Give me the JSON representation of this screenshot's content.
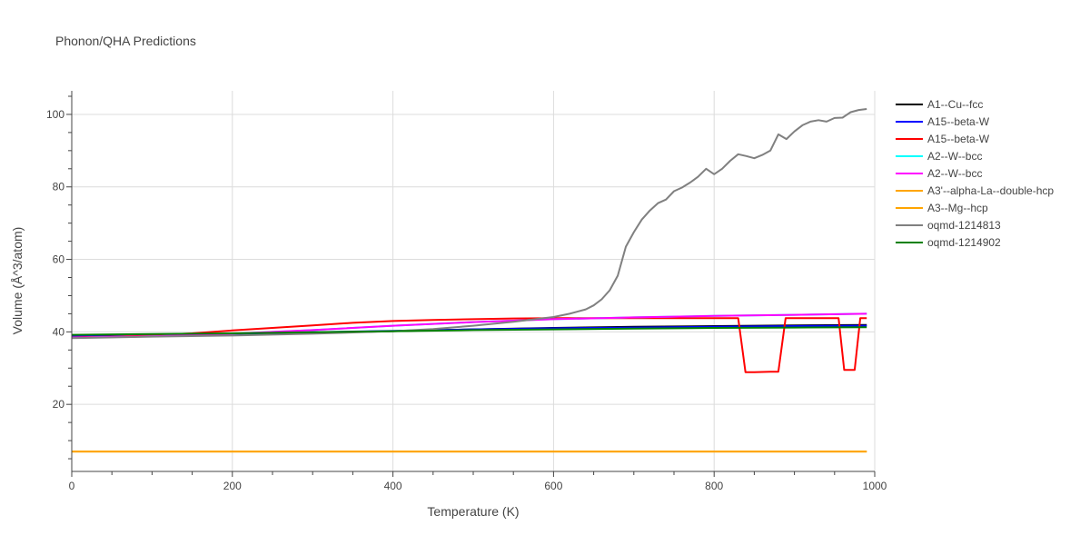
{
  "chart_data": {
    "type": "line",
    "title": "Phonon/QHA Predictions",
    "xlabel": "Temperature (K)",
    "ylabel": "Volume (Å^3/atom)",
    "xlim": [
      0,
      1000
    ],
    "ylim": [
      1.5,
      106.5
    ],
    "xticks": [
      0,
      200,
      400,
      600,
      800,
      1000
    ],
    "yticks": [
      20,
      40,
      60,
      80,
      100
    ],
    "grid": true,
    "legend_position": "right",
    "series": [
      {
        "name": "A1--Cu--fcc",
        "color": "#000000",
        "x": [
          0,
          100,
          200,
          300,
          400,
          500,
          600,
          700,
          800,
          900,
          990
        ],
        "y": [
          38.6,
          38.9,
          39.2,
          39.7,
          40.2,
          40.7,
          41.1,
          41.4,
          41.6,
          41.8,
          41.9
        ]
      },
      {
        "name": "A15--beta-W",
        "color": "#0000ff",
        "x": [
          0,
          100,
          200,
          300,
          400,
          500,
          600,
          700,
          800,
          900,
          990
        ],
        "y": [
          38.8,
          39.0,
          39.4,
          39.9,
          40.3,
          40.7,
          41.0,
          41.2,
          41.4,
          41.6,
          41.7
        ]
      },
      {
        "name": "A15--beta-W",
        "color": "#ff0000",
        "x": [
          0,
          50,
          100,
          150,
          200,
          250,
          300,
          350,
          400,
          450,
          500,
          550,
          600,
          650,
          700,
          750,
          800,
          830,
          839,
          850,
          870,
          880,
          889,
          900,
          950,
          955,
          962,
          970,
          975,
          982,
          990
        ],
        "y": [
          38.5,
          38.7,
          39.1,
          39.6,
          40.4,
          41.1,
          41.8,
          42.5,
          43.0,
          43.3,
          43.5,
          43.7,
          43.8,
          43.8,
          43.8,
          43.8,
          43.8,
          43.8,
          28.9,
          28.9,
          29.0,
          29.0,
          43.8,
          43.8,
          43.8,
          43.8,
          29.5,
          29.5,
          29.5,
          43.8,
          43.8
        ]
      },
      {
        "name": "A2--W--bcc",
        "color": "#00ffff",
        "x": [
          0,
          100,
          200,
          300,
          400,
          500,
          600,
          700,
          800,
          900,
          990
        ],
        "y": [
          38.4,
          38.8,
          39.5,
          40.5,
          41.7,
          42.7,
          43.5,
          44.0,
          44.4,
          44.7,
          45.0
        ]
      },
      {
        "name": "A2--W--bcc",
        "color": "#ff00ff",
        "x": [
          0,
          100,
          200,
          300,
          400,
          500,
          600,
          700,
          800,
          900,
          990
        ],
        "y": [
          38.4,
          38.8,
          39.5,
          40.5,
          41.7,
          42.7,
          43.5,
          44.0,
          44.4,
          44.7,
          45.0
        ]
      },
      {
        "name": "A3'--alpha-La--double-hcp",
        "color": "#ffa500",
        "x": [
          0,
          990
        ],
        "y": [
          7.0,
          7.0
        ]
      },
      {
        "name": "A3--Mg--hcp",
        "color": "#ffa500",
        "x": [
          0,
          990
        ],
        "y": [
          7.0,
          7.0
        ]
      },
      {
        "name": "oqmd-1214813",
        "color": "#808080",
        "x": [
          0,
          100,
          200,
          300,
          400,
          450,
          500,
          550,
          600,
          620,
          640,
          650,
          660,
          670,
          680,
          690,
          700,
          710,
          720,
          730,
          740,
          750,
          760,
          770,
          780,
          790,
          800,
          810,
          820,
          830,
          840,
          850,
          860,
          870,
          880,
          890,
          900,
          910,
          920,
          930,
          940,
          950,
          960,
          970,
          980,
          990
        ],
        "y": [
          38.3,
          38.7,
          39.0,
          39.5,
          40.2,
          40.8,
          41.7,
          42.8,
          44.1,
          45.0,
          46.2,
          47.3,
          49.0,
          51.5,
          55.5,
          63.5,
          67.5,
          71.0,
          73.5,
          75.5,
          76.5,
          78.8,
          79.8,
          81.2,
          82.8,
          85.0,
          83.5,
          85.0,
          87.2,
          89.0,
          88.5,
          87.9,
          88.8,
          90.0,
          94.5,
          93.2,
          95.3,
          97.0,
          98.0,
          98.4,
          98.0,
          99.0,
          99.1,
          100.6,
          101.2,
          101.5
        ]
      },
      {
        "name": "oqmd-1214902",
        "color": "#008000",
        "x": [
          0,
          100,
          200,
          300,
          400,
          500,
          600,
          700,
          800,
          900,
          990
        ],
        "y": [
          39.2,
          39.4,
          39.6,
          39.9,
          40.2,
          40.5,
          40.7,
          40.9,
          41.1,
          41.2,
          41.3
        ]
      }
    ]
  }
}
